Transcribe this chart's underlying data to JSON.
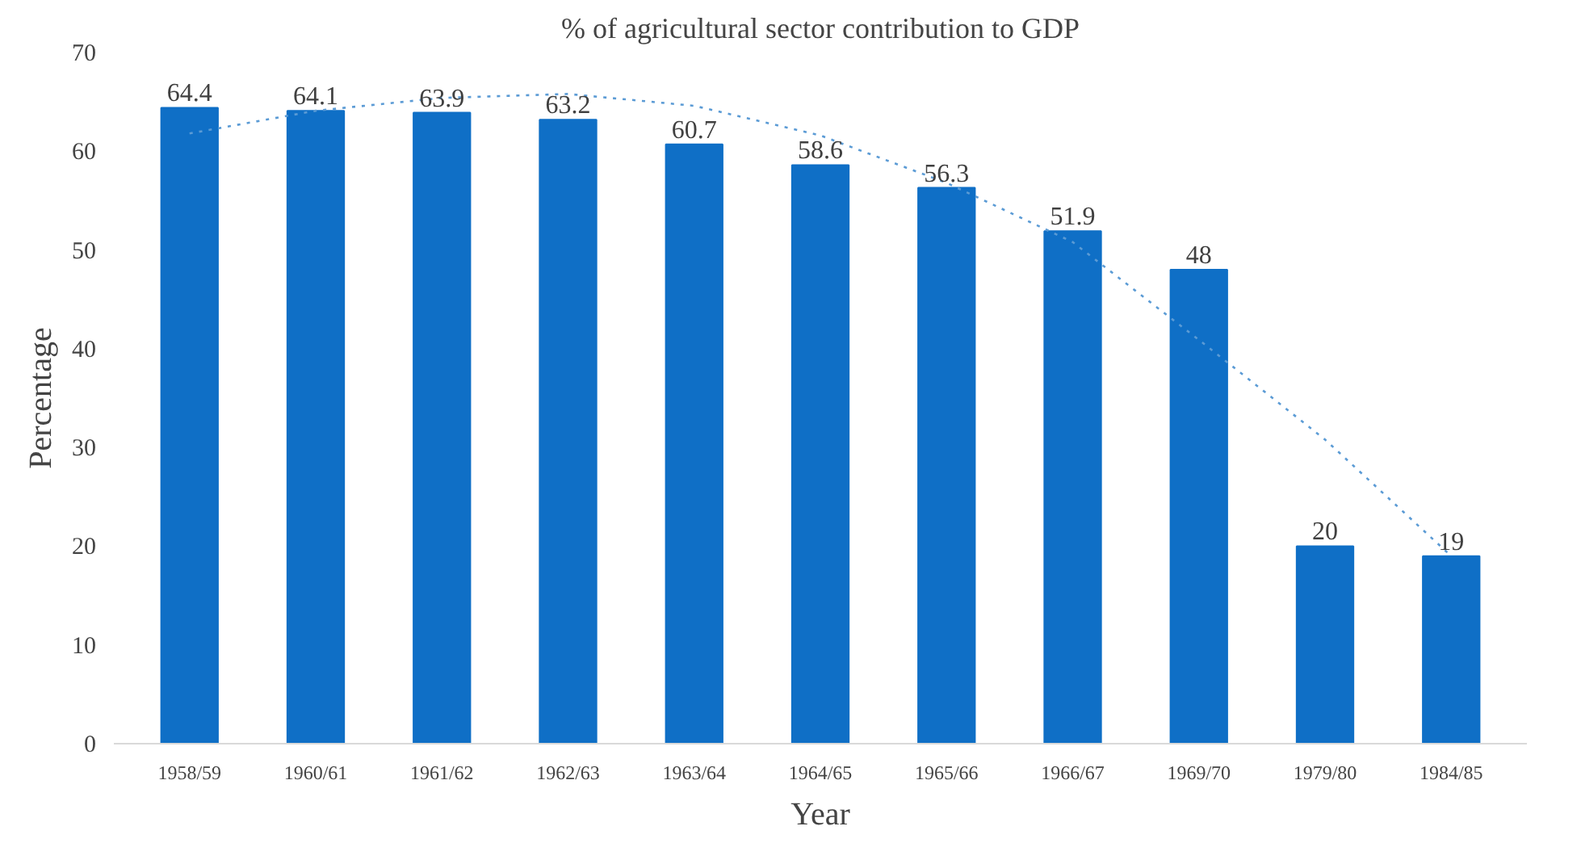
{
  "chart_data": {
    "type": "bar",
    "title": "% of agricultural sector contribution to GDP",
    "xlabel": "Year",
    "ylabel": "Percentage",
    "categories": [
      "1958/59",
      "1960/61",
      "1961/62",
      "1962/63",
      "1963/64",
      "1964/65",
      "1965/66",
      "1966/67",
      "1969/70",
      "1979/80",
      "1984/85"
    ],
    "series": [
      {
        "color": "#0f6fc6",
        "values": [
          64.4,
          64.1,
          63.9,
          63.2,
          60.7,
          58.6,
          56.3,
          51.9,
          48,
          20,
          19
        ],
        "value_labels": [
          "64.4",
          "64.1",
          "63.9",
          "63.2",
          "60.7",
          "58.6",
          "56.3",
          "51.9",
          "48",
          "20",
          "19"
        ]
      },
      {
        "type": "line",
        "color": "#5b9bd5",
        "line_style": "dotted",
        "x": [
          "1958/59",
          "1960/61",
          "1961/62",
          "1962/63",
          "1963/64",
          "1964/65",
          "1965/66",
          "1966/67",
          "1969/70",
          "1979/80",
          "1984/85"
        ],
        "values": [
          61.8,
          64.1,
          65.4,
          65.8,
          64.6,
          61.6,
          56.8,
          50.8,
          40.9,
          30.8,
          19
        ]
      }
    ],
    "ylim": [
      0,
      70
    ],
    "yticks": [
      0,
      10,
      20,
      30,
      40,
      50,
      60,
      70
    ],
    "grid": false
  }
}
